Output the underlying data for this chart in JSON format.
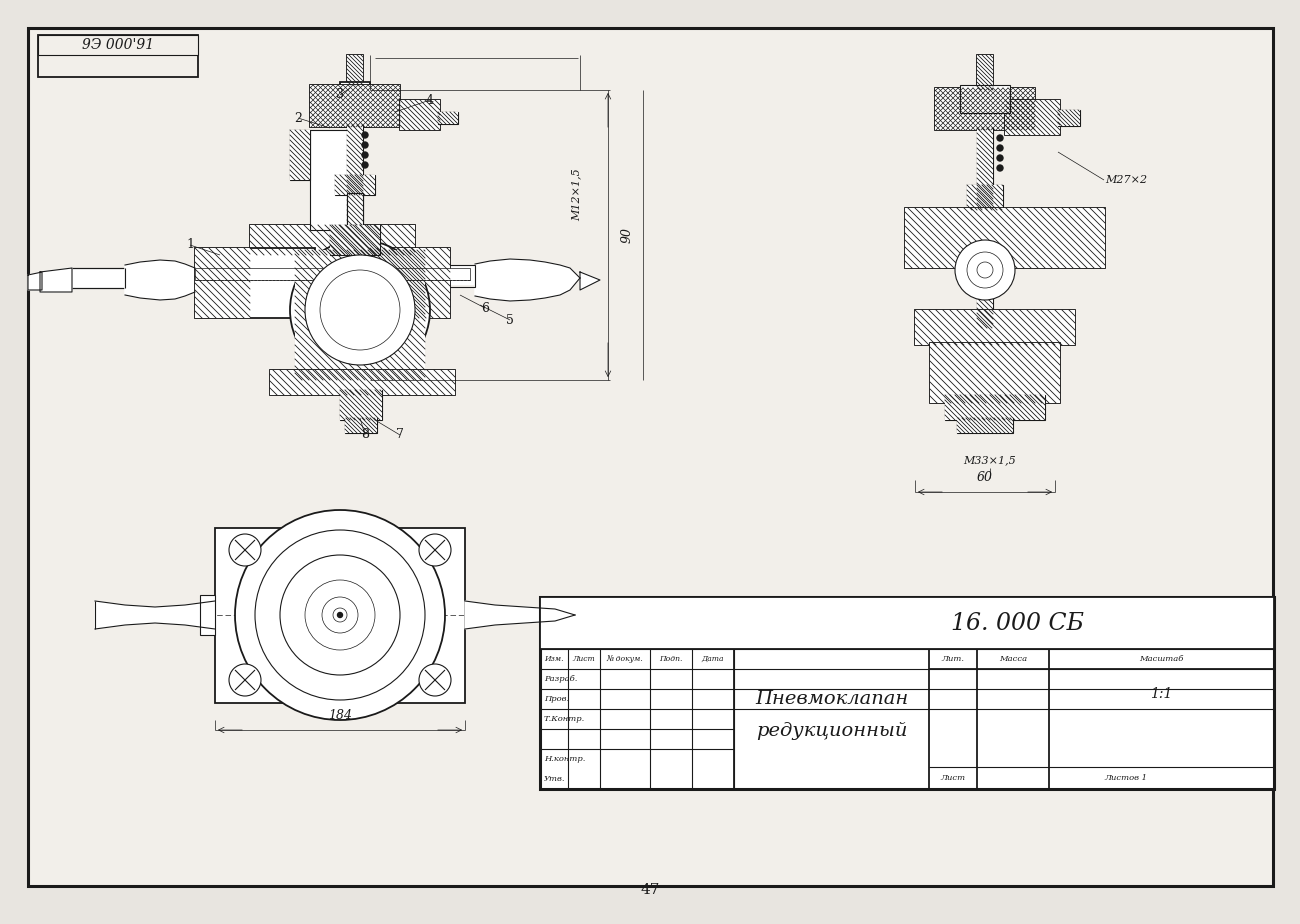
{
  "bg_color": "#e8e5e0",
  "paper_color": "#f2efea",
  "line_color": "#1a1a1a",
  "title": "16. 000 СБ",
  "part_name_line1": "Пневмоклапан",
  "part_name_line2": "редукционный",
  "page_num": "47",
  "corner_stamp_text": "9Э 000'91",
  "scale_text": "1:1",
  "lист_text": "Лист",
  "listov_text": "Листов 1",
  "lit_text": "Лит.",
  "massa_text": "Масса",
  "masshtab_text": "Масштаб",
  "col_headers": [
    "Изм.",
    "Лист",
    "№ докум.",
    "Подп.",
    "Дата"
  ],
  "row_labels": [
    "Разраб.",
    "Пров.",
    "Т.Контр.",
    "Н.контр.",
    "Утв."
  ],
  "dim_m12": "М12×1,5",
  "dim_90": "90",
  "dim_m33": "М33×1,5",
  "dim_60": "60",
  "dim_184": "184",
  "dim_m27": "М27×2",
  "labels": [
    "1",
    "2",
    "3",
    "4",
    "5",
    "6",
    "7",
    "8"
  ]
}
